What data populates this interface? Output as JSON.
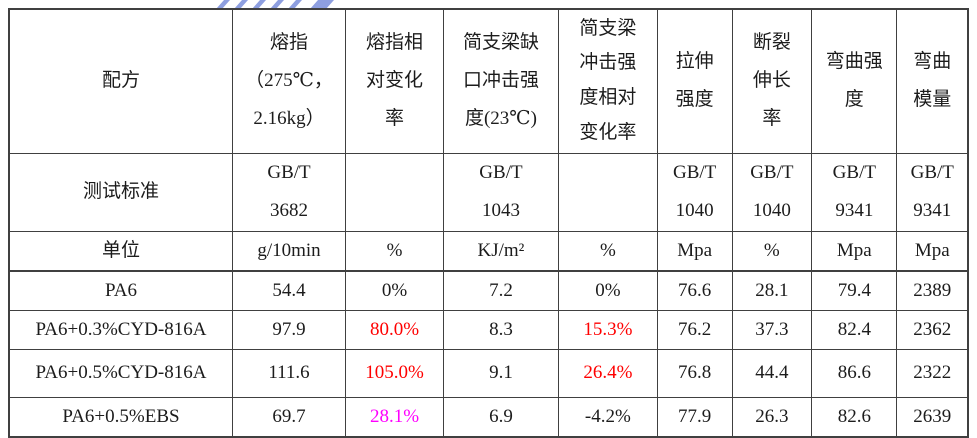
{
  "colors": {
    "text": "#1c1c1c",
    "grid_line": "#404040",
    "highlight_red": "#ff0000",
    "highlight_magenta": "#ff00ff",
    "watermark_blue": "#7b8fdb",
    "background": "#ffffff"
  },
  "watermark": {
    "top_fragment": "partial-blue-cursive-strokes",
    "v_mark": "blue-v-stroke"
  },
  "chart_data": {
    "type": "table",
    "title": "",
    "column_headers": [
      "配方",
      "熔指\n（275℃，\n2.16kg）",
      "熔指相\n对变化\n率",
      "简支梁缺\n口冲击强\n度(23℃)",
      "简支梁\n冲击强\n度相对\n变化率",
      "拉伸\n强度",
      "断裂\n伸长\n率",
      "弯曲强\n度",
      "弯曲\n模量"
    ],
    "rows": [
      {
        "label": "测试标准",
        "cells": [
          {
            "text": "GB/T\n3682"
          },
          {
            "text": ""
          },
          {
            "text": "GB/T\n1043"
          },
          {
            "text": ""
          },
          {
            "text": "GB/T\n1040"
          },
          {
            "text": "GB/T\n1040"
          },
          {
            "text": "GB/T\n9341"
          },
          {
            "text": "GB/T\n9341"
          }
        ]
      },
      {
        "label": "单位",
        "cells": [
          {
            "text": "g/10min"
          },
          {
            "text": "%"
          },
          {
            "text": "KJ/m²"
          },
          {
            "text": "%"
          },
          {
            "text": "Mpa"
          },
          {
            "text": "%"
          },
          {
            "text": "Mpa"
          },
          {
            "text": "Mpa"
          }
        ]
      },
      {
        "label": "PA6",
        "cells": [
          {
            "text": "54.4"
          },
          {
            "text": "0%"
          },
          {
            "text": "7.2"
          },
          {
            "text": "0%"
          },
          {
            "text": "76.6"
          },
          {
            "text": "28.1"
          },
          {
            "text": "79.4"
          },
          {
            "text": "2389"
          }
        ]
      },
      {
        "label": "PA6+0.3%CYD-816A",
        "cells": [
          {
            "text": "97.9"
          },
          {
            "text": "80.0%",
            "style": "red-bold"
          },
          {
            "text": "8.3"
          },
          {
            "text": "15.3%",
            "style": "red-bold"
          },
          {
            "text": "76.2"
          },
          {
            "text": "37.3"
          },
          {
            "text": "82.4"
          },
          {
            "text": "2362"
          }
        ]
      },
      {
        "label": "PA6+0.5%CYD-816A",
        "cells": [
          {
            "text": "111.6"
          },
          {
            "text": "105.0%",
            "style": "red-bold"
          },
          {
            "text": "9.1"
          },
          {
            "text": "26.4%",
            "style": "red-bold"
          },
          {
            "text": "76.8"
          },
          {
            "text": "44.4"
          },
          {
            "text": "86.6"
          },
          {
            "text": "2322"
          }
        ]
      },
      {
        "label": "PA6+0.5%EBS",
        "cells": [
          {
            "text": "69.7"
          },
          {
            "text": "28.1%",
            "style": "magenta"
          },
          {
            "text": "6.9"
          },
          {
            "text": "-4.2%"
          },
          {
            "text": "77.9"
          },
          {
            "text": "26.3"
          },
          {
            "text": "82.6"
          },
          {
            "text": "2639"
          }
        ]
      }
    ]
  }
}
